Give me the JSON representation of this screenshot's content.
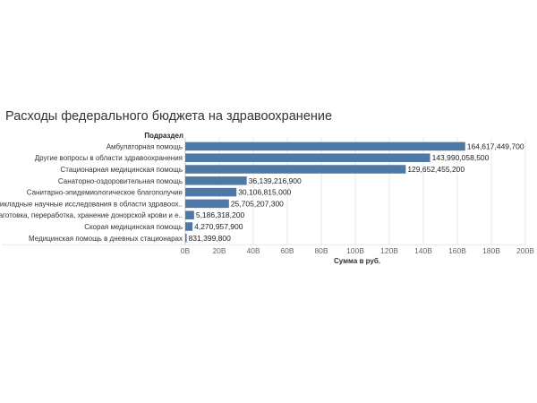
{
  "title": "Расходы федерального бюджета на здравоохранение",
  "colors": {
    "bar": "#4e79a7",
    "grid": "#e8e8e8",
    "axis": "#c8c8c8"
  },
  "chart_data": {
    "type": "bar",
    "orientation": "horizontal",
    "row_header": "Подраздел",
    "xlabel": "Сумма в руб.",
    "xlim": [
      0,
      200000000000
    ],
    "xticks": [
      "0B",
      "20B",
      "40B",
      "60B",
      "80B",
      "100B",
      "120B",
      "140B",
      "160B",
      "180B",
      "200B"
    ],
    "grid": true,
    "categories": [
      "Амбулаторная помощь",
      "Другие вопросы в области здравоохранения",
      "Стационарная медицинская помощь",
      "Санаторно-оздоровительная помощь",
      "Санитарно-эпидемиологическое благополучие",
      "Прикладные научные исследования в области здравоох..",
      "Заготовка, переработка, хранение донорской крови и е..",
      "Скорая медицинская помощь",
      "Медицинская помощь в дневных стационарах"
    ],
    "values": [
      164617449700,
      143990058500,
      129652455200,
      36139216900,
      30106815000,
      25705207300,
      5186318200,
      4270957900,
      831399800
    ],
    "value_labels": [
      "164,617,449,700",
      "143,990,058,500",
      "129,652,455,200",
      "36,139,216,900",
      "30,106,815,000",
      "25,705,207,300",
      "5,186,318,200",
      "4,270,957,900",
      "831,399,800"
    ]
  }
}
